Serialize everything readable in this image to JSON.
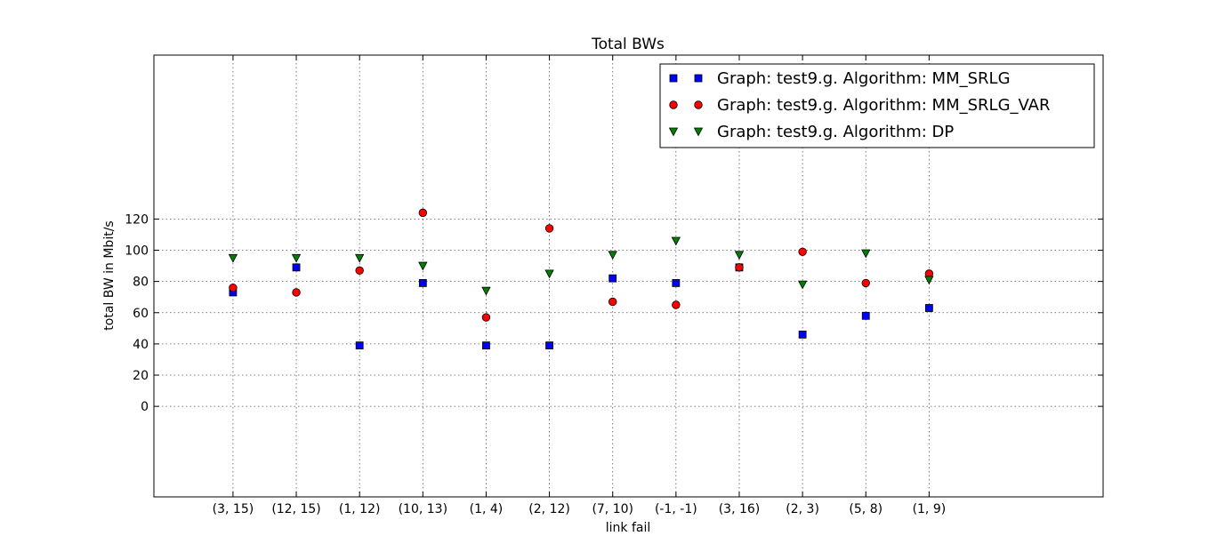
{
  "chart_data": {
    "type": "scatter",
    "title": "Total BWs",
    "xlabel": "link fail",
    "ylabel": "total BW in Mbit/s",
    "categories": [
      "(3, 15)",
      "(12, 15)",
      "(1, 12)",
      "(10, 13)",
      "(1, 4)",
      "(2, 12)",
      "(7, 10)",
      "(-1, -1)",
      "(3, 16)",
      "(2, 3)",
      "(5, 8)",
      "(1, 9)"
    ],
    "yticks": [
      0,
      20,
      40,
      60,
      80,
      100,
      120
    ],
    "ylim": [
      -58,
      225
    ],
    "xlim": [
      -1.25,
      13.75
    ],
    "grid": true,
    "legend_position": "top-right",
    "series": [
      {
        "name": "Graph: test9.g. Algorithm: MM_SRLG",
        "marker": "square",
        "color": "#0000ff",
        "values": [
          73,
          89,
          39,
          79,
          39,
          39,
          82,
          79,
          89,
          46,
          58,
          63
        ]
      },
      {
        "name": "Graph: test9.g. Algorithm: MM_SRLG_VAR",
        "marker": "circle",
        "color": "#ff0000",
        "values": [
          76,
          73,
          87,
          124,
          57,
          114,
          67,
          65,
          89,
          99,
          79,
          85
        ]
      },
      {
        "name": "Graph: test9.g. Algorithm: DP",
        "marker": "triangle-down",
        "color": "#007f00",
        "values": [
          95,
          95,
          95,
          90,
          74,
          85,
          97,
          106,
          97,
          78,
          98,
          81
        ]
      }
    ]
  }
}
